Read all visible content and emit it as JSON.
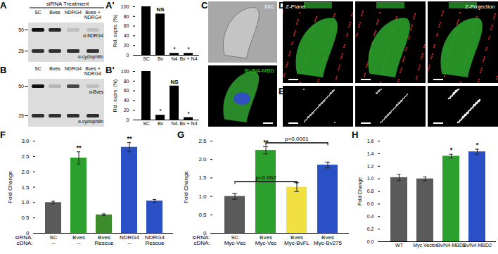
{
  "chart_data": [
    {
      "panel": "A'",
      "type": "bar",
      "categories": [
        "SC",
        "Bv",
        "N4",
        "Bv + N4"
      ],
      "values": [
        100,
        85,
        4,
        4
      ],
      "annotations": [
        null,
        "NS",
        "*",
        "*"
      ],
      "color": "#000000",
      "y_label": "Rel. exprs. (%)",
      "ylim": [
        0,
        100
      ],
      "yticks": [
        0,
        20,
        40,
        60,
        80,
        100
      ]
    },
    {
      "panel": "B'",
      "type": "bar",
      "categories": [
        "SC",
        "Bv",
        "N4",
        "Bv + N4"
      ],
      "values": [
        100,
        10,
        70,
        5
      ],
      "annotations": [
        null,
        "*",
        "NS",
        "*"
      ],
      "color": "#000000",
      "y_label": "Rel. exprs. (%)",
      "ylim": [
        0,
        100
      ],
      "yticks": [
        0,
        20,
        40,
        60,
        80,
        100
      ]
    },
    {
      "panel": "F",
      "type": "bar",
      "categories": [
        "SC",
        "Bves",
        "Bves",
        "NDRG4",
        "NDRG4"
      ],
      "cdna": [
        "--",
        "--",
        "Rescue",
        "--",
        "Rescue"
      ],
      "row_labels": [
        "siRNA:",
        "cDNA:"
      ],
      "values": [
        1.0,
        2.45,
        0.6,
        2.8,
        1.05
      ],
      "errors": [
        0.04,
        0.2,
        0.03,
        0.15,
        0.05
      ],
      "annotations": [
        null,
        "**",
        null,
        "**",
        null
      ],
      "colors": [
        "#5a5a5a",
        "#2ca02c",
        "#3c8c2c",
        "#2b4fc4",
        "#2b4fc4"
      ],
      "y_label": "Fold Change",
      "ylim": [
        0,
        3
      ],
      "yticks": [
        0,
        0.5,
        {
          "value": 1,
          "label": "1.0"
        },
        1.5,
        {
          "value": 2,
          "label": "2.0"
        },
        2.5,
        {
          "value": 3,
          "label": "3.0"
        }
      ]
    },
    {
      "panel": "G",
      "type": "bar",
      "categories": [
        "SC",
        "Bves",
        "Bves",
        "Bves"
      ],
      "cdna": [
        "Myc-Vec",
        "Myc-Vec",
        "Myc-BvFL",
        "Myc-Bv275"
      ],
      "row_labels": [
        "siRNA:",
        "cDNA:"
      ],
      "values": [
        1.0,
        2.25,
        1.25,
        1.85
      ],
      "errors": [
        0.08,
        0.1,
        0.12,
        0.08
      ],
      "annotations": [
        null,
        "**",
        null,
        null
      ],
      "brackets": [
        {
          "from": 0,
          "to": 2,
          "y": 1.4,
          "text": "p=0.062"
        },
        {
          "from": 1,
          "to": 3,
          "y": 2.45,
          "text": "p<0.0001"
        }
      ],
      "colors": [
        "#5a5a5a",
        "#2ca02c",
        "#f0e040",
        "#2b4fc4"
      ],
      "y_label": "Fold Change",
      "ylim": [
        0,
        2.5
      ],
      "yticks": [
        0,
        0.5,
        {
          "value": 1,
          "label": "1.0"
        },
        1.5,
        {
          "value": 2,
          "label": "2.0"
        },
        2.5
      ]
    },
    {
      "panel": "H",
      "type": "bar",
      "categories": [
        "WT",
        "Myc Vector",
        "Bv/N4-MBD1",
        "Bv/N4-MBD2"
      ],
      "values": [
        1.02,
        1.0,
        1.36,
        1.43
      ],
      "errors": [
        0.05,
        0.03,
        0.03,
        0.04
      ],
      "annotations": [
        null,
        null,
        "*",
        "*"
      ],
      "colors": [
        "#5a5a5a",
        "#5a5a5a",
        "#2ca02c",
        "#2b4fc4"
      ],
      "y_label": "Fold Change",
      "ylim": [
        0,
        1.6
      ],
      "yticks": [
        {
          "value": 0,
          "label": "0.0"
        },
        0.2,
        0.4,
        0.6,
        0.8,
        {
          "value": 1,
          "label": "1.0"
        },
        1.2,
        1.4,
        1.6
      ]
    }
  ],
  "blots": [
    {
      "panel": "A",
      "header": "siRNA Treatment",
      "lanes": [
        "SC",
        "Bves",
        "NDRG4",
        "Bves +\nNDRG4"
      ],
      "markers": [
        50,
        25
      ],
      "antibodies": [
        "α-NDRG4",
        "α-cyclophilin"
      ]
    },
    {
      "panel": "B",
      "lanes": [
        "SC",
        "Bves",
        "NDRG4",
        "Bves +\nNDRG4"
      ],
      "markers": [
        50,
        25
      ],
      "antibodies": [
        "α-Bves",
        "α-cyclophilin"
      ]
    }
  ],
  "images": [
    {
      "panel": "C",
      "labels": [
        "DIC",
        "Bv/N4-MBD"
      ]
    },
    {
      "panel": "D",
      "labels": [
        "Z-Plane",
        "Z-Projection"
      ]
    },
    {
      "panel": "E"
    }
  ]
}
